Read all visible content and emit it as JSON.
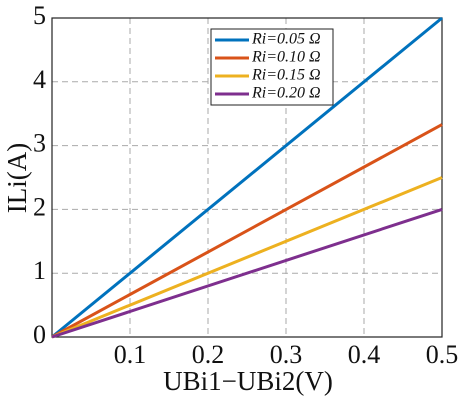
{
  "chart_data": {
    "type": "line",
    "x_label": "UBi1−UBi2(V)",
    "y_label": "ILi(A)",
    "x": [
      0,
      0.5
    ],
    "series": [
      {
        "name": "Ri=0.05 Ω",
        "color": "#0072bd",
        "values": [
          0,
          5
        ]
      },
      {
        "name": "Ri=0.10 Ω",
        "color": "#d95319",
        "values": [
          0,
          3.33
        ]
      },
      {
        "name": "Ri=0.15 Ω",
        "color": "#edb120",
        "values": [
          0,
          2.5
        ]
      },
      {
        "name": "Ri=0.20 Ω",
        "color": "#7e2f8e",
        "values": [
          0,
          2
        ]
      }
    ],
    "xlim": [
      0,
      0.5
    ],
    "xticks": [
      0.1,
      0.2,
      0.3,
      0.4,
      0.5
    ],
    "ylim": [
      0,
      5
    ],
    "yticks": [
      0,
      1,
      2,
      3,
      4,
      5
    ],
    "grid": true,
    "legend": "top-center"
  }
}
